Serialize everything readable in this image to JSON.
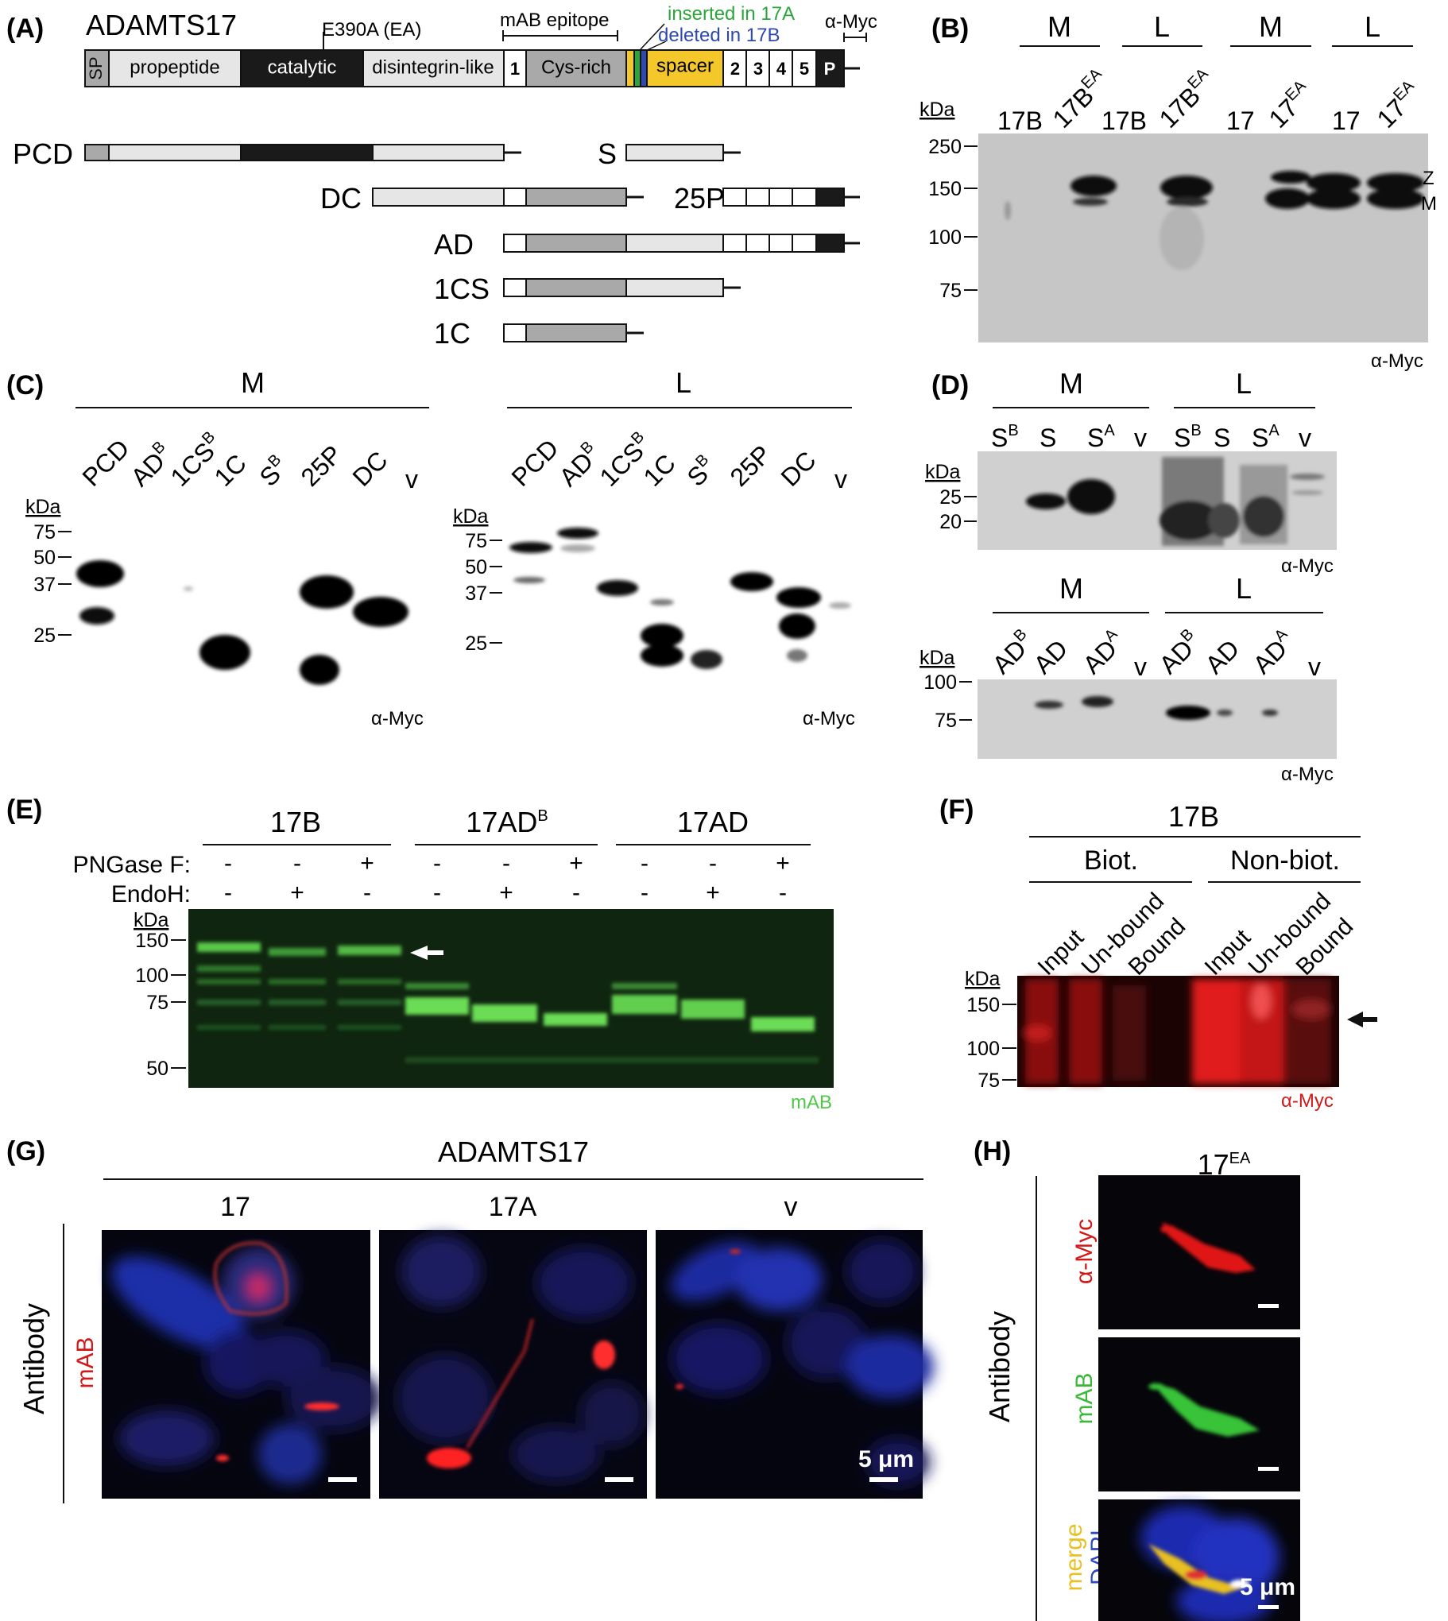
{
  "figure": {
    "panels": {
      "A": "(A)",
      "B": "(B)",
      "C": "(C)",
      "D": "(D)",
      "E": "(E)",
      "F": "(F)",
      "G": "(G)",
      "H": "(H)"
    },
    "a": {
      "title": "ADAMTS17",
      "mutation_label": "E390A (EA)",
      "epitope_label": "mAB epitope",
      "inserted_label": "inserted in 17A",
      "deleted_label": "deleted in 17B",
      "myc_label": "α-Myc",
      "domains": {
        "sp": "SP",
        "propeptide": "propeptide",
        "catalytic": "catalytic",
        "disintegrin": "disintegrin-like",
        "tsr1": "1",
        "cys": "Cys-rich",
        "spacer": "spacer",
        "tsr2": "2",
        "tsr3": "3",
        "tsr4": "4",
        "tsr5": "5",
        "plac": "P"
      },
      "constructs": {
        "pcd": "PCD",
        "s": "S",
        "dc": "DC",
        "p25": "25P",
        "ad": "AD",
        "cs1": "1CS",
        "c1": "1C"
      },
      "colors": {
        "inserted": "#2aa63a",
        "deleted": "#2d48b0",
        "spacer": "#f4c82a",
        "catalytic": "#1a1a1a",
        "cys": "#a9a9a9",
        "light": "#e6e6e6"
      }
    },
    "b": {
      "groups": [
        "M",
        "L",
        "M",
        "L"
      ],
      "kda": "kDa",
      "lanes": [
        {
          "base": "17B",
          "sup": ""
        },
        {
          "base": "17B",
          "sup": "EA"
        },
        {
          "base": "17B",
          "sup": ""
        },
        {
          "base": "17B",
          "sup": "EA"
        },
        {
          "base": "17",
          "sup": ""
        },
        {
          "base": "17",
          "sup": "EA"
        },
        {
          "base": "17",
          "sup": ""
        },
        {
          "base": "17",
          "sup": "EA"
        }
      ],
      "markers": [
        "250",
        "150",
        "100",
        "75"
      ],
      "side_labels": [
        "Z",
        "M"
      ],
      "antibody": "α-Myc"
    },
    "c": {
      "group_m": "M",
      "group_l": "L",
      "kda": "kDa",
      "lanes": [
        {
          "base": "PCD",
          "sup": ""
        },
        {
          "base": "AD",
          "sup": "B"
        },
        {
          "base": "1CS",
          "sup": "B"
        },
        {
          "base": "1C",
          "sup": ""
        },
        {
          "base": "S",
          "sup": "B"
        },
        {
          "base": "25P",
          "sup": ""
        },
        {
          "base": "DC",
          "sup": ""
        },
        {
          "base": "v",
          "sup": ""
        }
      ],
      "markers_m": [
        "75",
        "50",
        "37",
        "25"
      ],
      "markers_l": [
        "75",
        "50",
        "37",
        "25"
      ],
      "antibody": "α-Myc"
    },
    "d": {
      "group_m": "M",
      "group_l": "L",
      "kda": "kDa",
      "top_lanes": [
        {
          "base": "S",
          "sup": "B"
        },
        {
          "base": "S",
          "sup": ""
        },
        {
          "base": "S",
          "sup": "A"
        },
        {
          "base": "v",
          "sup": ""
        },
        {
          "base": "S",
          "sup": "B"
        },
        {
          "base": "S",
          "sup": ""
        },
        {
          "base": "S",
          "sup": "A"
        },
        {
          "base": "v",
          "sup": ""
        }
      ],
      "top_markers": [
        "25",
        "20"
      ],
      "bottom_lanes": [
        {
          "base": "AD",
          "sup": "B"
        },
        {
          "base": "AD",
          "sup": ""
        },
        {
          "base": "AD",
          "sup": "A"
        },
        {
          "base": "v",
          "sup": ""
        },
        {
          "base": "AD",
          "sup": "B"
        },
        {
          "base": "AD",
          "sup": ""
        },
        {
          "base": "AD",
          "sup": "A"
        },
        {
          "base": "v",
          "sup": ""
        }
      ],
      "bottom_markers": [
        "100",
        "75"
      ],
      "antibody": "α-Myc"
    },
    "e": {
      "groups": [
        {
          "base": "17B",
          "sup": ""
        },
        {
          "base": "17AD",
          "sup": "B"
        },
        {
          "base": "17AD",
          "sup": ""
        }
      ],
      "pngase_label": "PNGase F:",
      "endoh_label": "EndoH:",
      "pngase_signs": [
        "-",
        "-",
        "+",
        "-",
        "-",
        "+",
        "-",
        "-",
        "+"
      ],
      "endoh_signs": [
        "-",
        "+",
        "-",
        "-",
        "+",
        "-",
        "-",
        "+",
        "-"
      ],
      "kda": "kDa",
      "markers": [
        "150",
        "100",
        "75",
        "50"
      ],
      "antibody": "mAB"
    },
    "f": {
      "title": "17B",
      "group_biot": "Biot.",
      "group_nonbiot": "Non-biot.",
      "lanes": [
        "Input",
        "Un-bound",
        "Bound",
        "Input",
        "Un-bound",
        "Bound"
      ],
      "kda": "kDa",
      "markers": [
        "150",
        "100",
        "75"
      ],
      "antibody": "α-Myc"
    },
    "g": {
      "title": "ADAMTS17",
      "columns": [
        "17",
        "17A",
        "v"
      ],
      "row_label": "Antibody",
      "channel_label": "mAB",
      "scale": "5 μm"
    },
    "h": {
      "title": {
        "base": "17",
        "sup": "EA"
      },
      "row_label": "Antibody",
      "channel_myc": "α-Myc",
      "channel_mab": "mAB",
      "channel_merge": "merge",
      "channel_dapi": "DAPI",
      "scale": "5 μm"
    }
  }
}
